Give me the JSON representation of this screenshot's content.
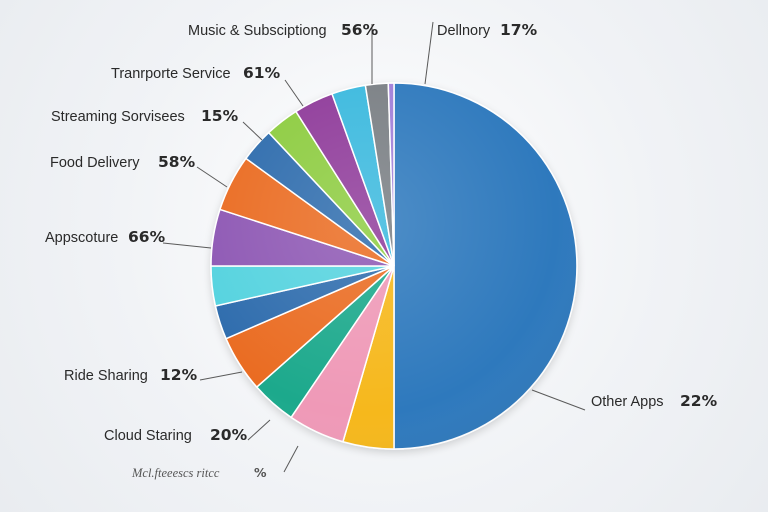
{
  "chart_data": {
    "type": "pie",
    "title": "",
    "legend": "none",
    "colors": {
      "dark_blue": "#2f79bd",
      "yellow": "#f6b81c",
      "pink": "#ef99b7",
      "teal": "#1fa98c",
      "orange": "#ea6c22",
      "navy": "#2d6cad",
      "cyan": "#54d3df",
      "purple": "#8e59b4",
      "light_green": "#8dcc3f",
      "magenta": "#8f3b9a",
      "sky": "#3ab9de",
      "grey": "#7a7f84",
      "lavender": "#a17fd8"
    },
    "slices": [
      {
        "value": 50.0,
        "color": "dark_blue"
      },
      {
        "value": 4.5,
        "color": "yellow"
      },
      {
        "value": 5.0,
        "color": "pink"
      },
      {
        "value": 4.0,
        "color": "teal"
      },
      {
        "value": 5.0,
        "color": "orange"
      },
      {
        "value": 3.0,
        "color": "navy"
      },
      {
        "value": 3.5,
        "color": "cyan"
      },
      {
        "value": 5.0,
        "color": "purple"
      },
      {
        "value": 5.0,
        "color": "orange"
      },
      {
        "value": 3.0,
        "color": "navy"
      },
      {
        "value": 3.0,
        "color": "light_green"
      },
      {
        "value": 3.5,
        "color": "magenta"
      },
      {
        "value": 3.0,
        "color": "sky"
      },
      {
        "value": 2.0,
        "color": "grey"
      },
      {
        "value": 0.5,
        "color": "lavender"
      }
    ],
    "labels": [
      {
        "name": "Music & Subsciptiong",
        "value": "56%"
      },
      {
        "name": "Dellnory",
        "value": "17%"
      },
      {
        "name": "Tranrporte Service",
        "value": "61%"
      },
      {
        "name": "Streaming Sorvisees",
        "value": "15%"
      },
      {
        "name": "Food Delivery",
        "value": "58%"
      },
      {
        "name": "Appscoture",
        "value": "66%"
      },
      {
        "name": "Ride Sharing",
        "value": "12%"
      },
      {
        "name": "Cloud Staring",
        "value": "20%"
      },
      {
        "name": "Mcl.fteeescs ritcc",
        "value": "%"
      },
      {
        "name": "Other Apps",
        "value": "22%"
      }
    ]
  }
}
